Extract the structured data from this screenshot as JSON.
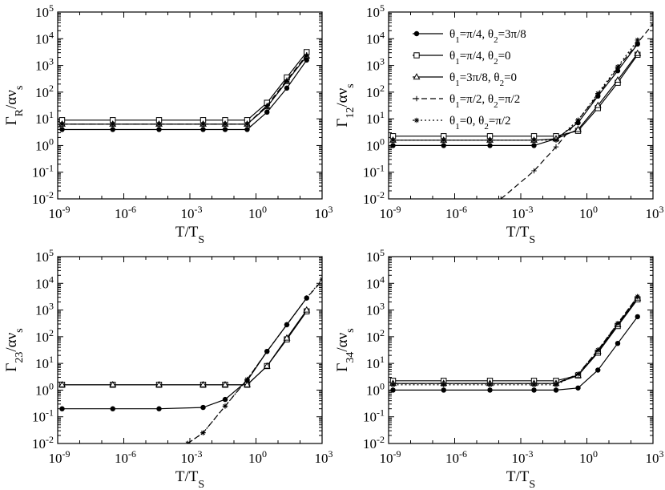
{
  "figure": {
    "legend_entries": [
      {
        "name": "θ1=π/4, θ2=3π/8",
        "parts": [
          [
            "θ",
            ""
          ],
          [
            "1",
            "sub"
          ],
          [
            "=π/4, θ",
            ""
          ],
          [
            "2",
            "sub"
          ],
          [
            "=3π/8",
            ""
          ]
        ],
        "marker": "circle",
        "dash": "solid"
      },
      {
        "name": "θ1=π/4, θ2=0",
        "parts": [
          [
            "θ",
            ""
          ],
          [
            "1",
            "sub"
          ],
          [
            "=π/4, θ",
            ""
          ],
          [
            "2",
            "sub"
          ],
          [
            "=0",
            ""
          ]
        ],
        "marker": "square",
        "dash": "solid"
      },
      {
        "name": "θ1=3π/8, θ2=0",
        "parts": [
          [
            "θ",
            ""
          ],
          [
            "1",
            "sub"
          ],
          [
            "=3π/8, θ",
            ""
          ],
          [
            "2",
            "sub"
          ],
          [
            "=0",
            ""
          ]
        ],
        "marker": "triangle",
        "dash": "solid"
      },
      {
        "name": "θ1=π/2, θ2=π/2",
        "parts": [
          [
            "θ",
            ""
          ],
          [
            "1",
            "sub"
          ],
          [
            "=π/2, θ",
            ""
          ],
          [
            "2",
            "sub"
          ],
          [
            "=π/2",
            ""
          ]
        ],
        "marker": "plus",
        "dash": "dashed"
      },
      {
        "name": "θ1=0, θ2=π/2",
        "parts": [
          [
            "θ",
            ""
          ],
          [
            "1",
            "sub"
          ],
          [
            "=0, θ",
            ""
          ],
          [
            "2",
            "sub"
          ],
          [
            "=π/2",
            ""
          ]
        ],
        "marker": "star",
        "dash": "dotted"
      }
    ]
  },
  "chart_data": [
    {
      "type": "line",
      "id": "gamma_R",
      "title": "",
      "xscale": "log",
      "yscale": "log",
      "xlim_exp": [
        -9,
        3
      ],
      "ylim_exp": [
        -2,
        5
      ],
      "xticks_exp": [
        -9,
        -6,
        -3,
        0,
        3
      ],
      "yticks_exp": [
        -2,
        -1,
        0,
        1,
        2,
        3,
        4,
        5
      ],
      "tick_base": "10",
      "xlabel_parts": [
        [
          "T/T",
          ""
        ],
        [
          "S",
          "sub"
        ]
      ],
      "ylabel_parts": [
        [
          "Γ",
          ""
        ],
        [
          "R",
          "sub"
        ],
        [
          "/αν",
          ""
        ],
        [
          "s",
          "sub"
        ]
      ],
      "legend": "none",
      "x_log10": [
        -8.8,
        -6.5,
        -4.4,
        -2.4,
        -1.4,
        -0.4,
        0.5,
        1.4,
        2.3
      ],
      "series": [
        {
          "name": "θ1=π/4, θ2=3π/8",
          "y_log10": [
            0.6,
            0.6,
            0.6,
            0.6,
            0.6,
            0.6,
            1.25,
            2.15,
            3.2
          ]
        },
        {
          "name": "θ1=π/4, θ2=0",
          "y_log10": [
            0.95,
            0.95,
            0.95,
            0.95,
            0.95,
            0.95,
            1.6,
            2.55,
            3.5
          ]
        },
        {
          "name": "θ1=3π/8, θ2=0",
          "y_log10": [
            0.8,
            0.8,
            0.8,
            0.8,
            0.8,
            0.8,
            1.45,
            2.4,
            3.35
          ]
        },
        {
          "name": "θ1=π/2, θ2=π/2",
          "y_log10": [
            0.8,
            0.8,
            0.8,
            0.8,
            0.8,
            0.8,
            1.5,
            2.45,
            3.4
          ]
        },
        {
          "name": "θ1=0, θ2=π/2",
          "y_log10": [
            0.8,
            0.8,
            0.8,
            0.8,
            0.8,
            0.8,
            1.45,
            2.4,
            3.35
          ]
        }
      ]
    },
    {
      "type": "line",
      "id": "gamma_12",
      "title": "",
      "xscale": "log",
      "yscale": "log",
      "xlim_exp": [
        -9,
        3
      ],
      "ylim_exp": [
        -2,
        5
      ],
      "xticks_exp": [
        -9,
        -6,
        -3,
        0,
        3
      ],
      "yticks_exp": [
        -2,
        -1,
        0,
        1,
        2,
        3,
        4,
        5
      ],
      "tick_base": "10",
      "xlabel_parts": [
        [
          "T/T",
          ""
        ],
        [
          "S",
          "sub"
        ]
      ],
      "ylabel_parts": [
        [
          "Γ",
          ""
        ],
        [
          "12",
          "sub"
        ],
        [
          "/αν",
          ""
        ],
        [
          "s",
          "sub"
        ]
      ],
      "legend": "top-right",
      "x_log10": [
        -8.8,
        -6.5,
        -4.4,
        -2.4,
        -1.4,
        -0.4,
        0.5,
        1.4,
        2.3
      ],
      "series": [
        {
          "name": "θ1=π/4, θ2=3π/8",
          "y_log10": [
            0.0,
            0.0,
            0.0,
            0.0,
            0.25,
            0.85,
            1.85,
            2.8,
            3.8
          ]
        },
        {
          "name": "θ1=π/4, θ2=0",
          "y_log10": [
            0.35,
            0.35,
            0.35,
            0.35,
            0.35,
            0.55,
            1.4,
            2.35,
            3.4
          ]
        },
        {
          "name": "θ1=3π/8, θ2=0",
          "y_log10": [
            0.2,
            0.2,
            0.2,
            0.2,
            0.25,
            0.6,
            1.5,
            2.45,
            3.45
          ]
        },
        {
          "name": "θ1=π/2, θ2=π/2",
          "x_log10": [
            -3.9,
            -2.4,
            -1.4,
            -0.4,
            0.5,
            1.4,
            2.3,
            3.0
          ],
          "y_log10": [
            -2.0,
            -0.95,
            -0.05,
            0.95,
            1.9,
            2.9,
            3.85,
            4.55
          ]
        },
        {
          "name": "θ1=0, θ2=π/2",
          "y_log10": [
            0.2,
            0.2,
            0.2,
            0.2,
            0.2,
            0.95,
            1.95,
            2.95,
            3.95
          ]
        }
      ]
    },
    {
      "type": "line",
      "id": "gamma_23",
      "title": "",
      "xscale": "log",
      "yscale": "log",
      "xlim_exp": [
        -9,
        3
      ],
      "ylim_exp": [
        -2,
        5
      ],
      "xticks_exp": [
        -9,
        -6,
        -3,
        0,
        3
      ],
      "yticks_exp": [
        -2,
        -1,
        0,
        1,
        2,
        3,
        4,
        5
      ],
      "tick_base": "10",
      "xlabel_parts": [
        [
          "T/T",
          ""
        ],
        [
          "S",
          "sub"
        ]
      ],
      "ylabel_parts": [
        [
          "Γ",
          ""
        ],
        [
          "23",
          "sub"
        ],
        [
          "/αν",
          ""
        ],
        [
          "s",
          "sub"
        ]
      ],
      "legend": "none",
      "x_log10": [
        -8.8,
        -6.5,
        -4.4,
        -2.4,
        -1.4,
        -0.4,
        0.5,
        1.4,
        2.3
      ],
      "series": [
        {
          "name": "θ1=π/4, θ2=3π/8",
          "y_log10": [
            -0.7,
            -0.7,
            -0.7,
            -0.65,
            -0.35,
            0.35,
            1.45,
            2.45,
            3.45
          ]
        },
        {
          "name": "θ1=π/4, θ2=0",
          "y_log10": [
            0.2,
            0.2,
            0.2,
            0.2,
            0.2,
            0.2,
            0.9,
            1.9,
            2.95
          ]
        },
        {
          "name": "θ1=3π/8, θ2=0",
          "y_log10": [
            0.2,
            0.2,
            0.2,
            0.2,
            0.2,
            0.2,
            0.9,
            1.95,
            3.0
          ]
        },
        {
          "name": "θ1=π/2, θ2=π/2",
          "x_log10": [
            -3.1,
            -2.4,
            -1.4,
            -0.4,
            0.5,
            1.4,
            2.3,
            3.0
          ],
          "y_log10": [
            -2.0,
            -1.6,
            -0.6,
            0.4,
            1.45,
            2.45,
            3.45,
            4.1
          ]
        },
        {
          "name": "θ1=0, θ2=π/2",
          "x_log10": [
            -3.1,
            -2.4,
            -1.4,
            -0.4,
            0.5,
            1.4,
            2.3,
            3.0
          ],
          "y_log10": [
            -2.0,
            -1.6,
            -0.6,
            0.4,
            1.45,
            2.45,
            3.45,
            4.15
          ]
        }
      ]
    },
    {
      "type": "line",
      "id": "gamma_34",
      "title": "",
      "xscale": "log",
      "yscale": "log",
      "xlim_exp": [
        -9,
        3
      ],
      "ylim_exp": [
        -2,
        5
      ],
      "xticks_exp": [
        -9,
        -6,
        -3,
        0,
        3
      ],
      "yticks_exp": [
        -2,
        -1,
        0,
        1,
        2,
        3,
        4,
        5
      ],
      "tick_base": "10",
      "xlabel_parts": [
        [
          "T/T",
          ""
        ],
        [
          "S",
          "sub"
        ]
      ],
      "ylabel_parts": [
        [
          "Γ",
          ""
        ],
        [
          "34",
          "sub"
        ],
        [
          "/αν",
          ""
        ],
        [
          "s",
          "sub"
        ]
      ],
      "legend": "none",
      "x_log10": [
        -8.8,
        -6.5,
        -4.4,
        -2.4,
        -1.4,
        -0.4,
        0.5,
        1.4,
        2.3
      ],
      "series": [
        {
          "name": "θ1=π/4, θ2=3π/8",
          "y_log10": [
            0.0,
            0.0,
            0.0,
            0.0,
            0.0,
            0.08,
            0.75,
            1.75,
            2.75
          ]
        },
        {
          "name": "θ1=π/4, θ2=0",
          "y_log10": [
            0.35,
            0.35,
            0.35,
            0.35,
            0.35,
            0.55,
            1.4,
            2.4,
            3.4
          ]
        },
        {
          "name": "θ1=3π/8, θ2=0",
          "y_log10": [
            0.25,
            0.25,
            0.25,
            0.25,
            0.25,
            0.55,
            1.45,
            2.45,
            3.45
          ]
        },
        {
          "name": "θ1=π/2, θ2=π/2",
          "y_log10": [
            0.25,
            0.25,
            0.25,
            0.25,
            0.25,
            0.6,
            1.5,
            2.5,
            3.5
          ]
        },
        {
          "name": "θ1=0, θ2=π/2",
          "y_log10": [
            0.2,
            0.2,
            0.2,
            0.2,
            0.2,
            0.6,
            1.5,
            2.5,
            3.5
          ]
        }
      ]
    }
  ]
}
